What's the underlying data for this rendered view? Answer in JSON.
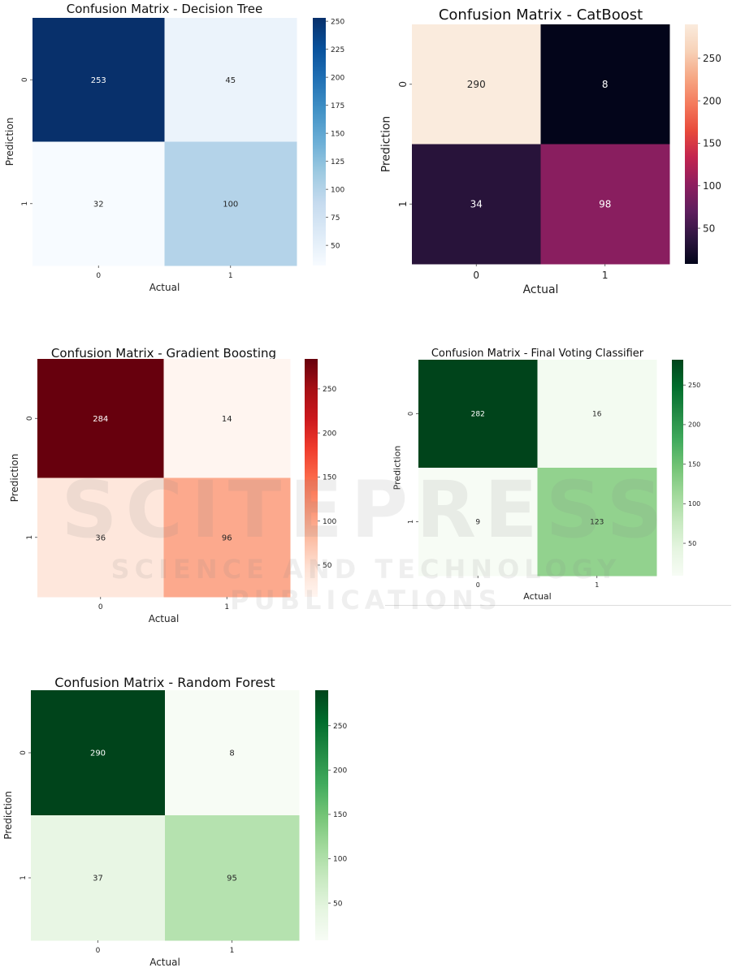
{
  "chart_data": [
    {
      "type": "heatmap",
      "title": "Confusion Matrix - Decision Tree",
      "xlabel": "Actual",
      "ylabel": "Prediction",
      "x_categories": [
        "0",
        "1"
      ],
      "y_categories": [
        "0",
        "1"
      ],
      "values": [
        [
          253,
          45
        ],
        [
          32,
          100
        ]
      ],
      "colormap": "Blues",
      "colorbar_ticks": [
        50,
        75,
        100,
        125,
        150,
        175,
        200,
        225,
        250
      ]
    },
    {
      "type": "heatmap",
      "title": "Confusion Matrix - CatBoost",
      "xlabel": "Actual",
      "ylabel": "Prediction",
      "x_categories": [
        "0",
        "1"
      ],
      "y_categories": [
        "0",
        "1"
      ],
      "values": [
        [
          290,
          8
        ],
        [
          34,
          98
        ]
      ],
      "colormap": "rocket",
      "colorbar_ticks": [
        50,
        100,
        150,
        200,
        250
      ]
    },
    {
      "type": "heatmap",
      "title": "Confusion Matrix - Gradient Boosting",
      "xlabel": "Actual",
      "ylabel": "Prediction",
      "x_categories": [
        "0",
        "1"
      ],
      "y_categories": [
        "0",
        "1"
      ],
      "values": [
        [
          284,
          14
        ],
        [
          36,
          96
        ]
      ],
      "colormap": "Reds",
      "colorbar_ticks": [
        50,
        100,
        150,
        200,
        250
      ]
    },
    {
      "type": "heatmap",
      "title": "Confusion Matrix - Final Voting Classifier",
      "xlabel": "Actual",
      "ylabel": "Prediction",
      "x_categories": [
        "0",
        "1"
      ],
      "y_categories": [
        "0",
        "1"
      ],
      "values": [
        [
          282,
          16
        ],
        [
          9,
          123
        ]
      ],
      "colormap": "Greens",
      "colorbar_ticks": [
        50,
        100,
        150,
        200,
        250
      ]
    },
    {
      "type": "heatmap",
      "title": "Confusion Matrix - Random Forest",
      "xlabel": "Actual",
      "ylabel": "Prediction",
      "x_categories": [
        "0",
        "1"
      ],
      "y_categories": [
        "0",
        "1"
      ],
      "values": [
        [
          290,
          8
        ],
        [
          37,
          95
        ]
      ],
      "colormap": "Greens",
      "colorbar_ticks": [
        50,
        100,
        150,
        200,
        250
      ]
    }
  ],
  "watermark": {
    "main": "SCITEPRESS",
    "sub": "SCIENCE AND TECHNOLOGY PUBLICATIONS"
  }
}
